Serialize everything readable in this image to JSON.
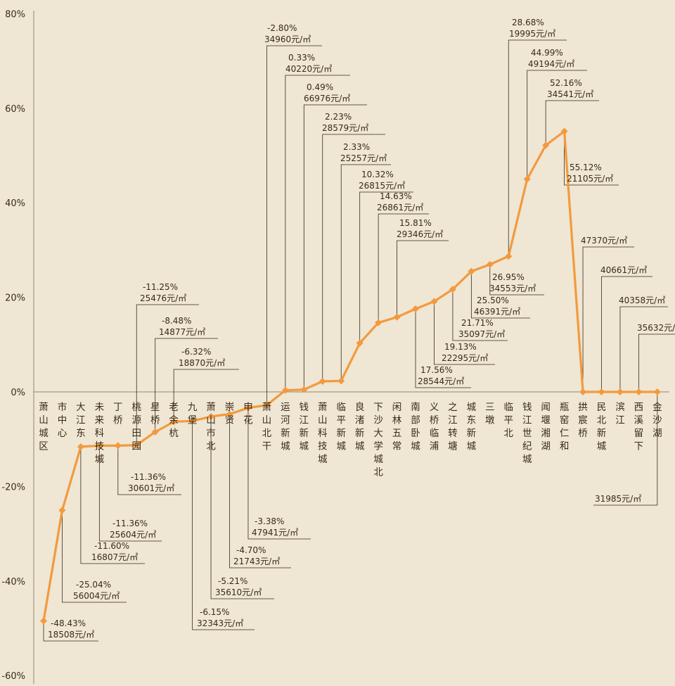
{
  "chart_data": {
    "type": "line",
    "title": "",
    "xlabel": "",
    "ylabel": "",
    "ylim": [
      -60,
      80
    ],
    "yticks": [
      "80%",
      "60%",
      "40%",
      "20%",
      "0%",
      "-20%",
      "-40%",
      "-60%"
    ],
    "grid": false,
    "colors": {
      "line": "#f39a3d",
      "marker": "#f39a3d",
      "background": "#efe6d4",
      "axis": "#8f8676",
      "leader": "#3a2a18"
    },
    "points": [
      {
        "name": "萧山城区",
        "value": -48.43,
        "pct": "-48.43%",
        "price": "18508元/㎡"
      },
      {
        "name": "市中心",
        "value": -25.04,
        "pct": "-25.04%",
        "price": "56004元/㎡"
      },
      {
        "name": "大江东",
        "value": -11.6,
        "pct": "-11.60%",
        "price": "16807元/㎡"
      },
      {
        "name": "未来科技城",
        "value": -11.36,
        "pct": "-11.36%",
        "price": "25604元/㎡"
      },
      {
        "name": "丁桥",
        "value": -11.36,
        "pct": "-11.36%",
        "price": "30601元/㎡"
      },
      {
        "name": "桃源田园",
        "value": -11.25,
        "pct": "-11.25%",
        "price": "25476元/㎡"
      },
      {
        "name": "星桥",
        "value": -8.48,
        "pct": "-8.48%",
        "price": "14877元/㎡"
      },
      {
        "name": "老余杭",
        "value": -6.32,
        "pct": "-6.32%",
        "price": "18870元/㎡"
      },
      {
        "name": "九堡",
        "value": -6.15,
        "pct": "-6.15%",
        "price": "32343元/㎡"
      },
      {
        "name": "萧山市北",
        "value": -5.21,
        "pct": "-5.21%",
        "price": "35610元/㎡"
      },
      {
        "name": "崇贤",
        "value": -4.7,
        "pct": "-4.70%",
        "price": "21743元/㎡"
      },
      {
        "name": "申花",
        "value": -3.38,
        "pct": "-3.38%",
        "price": "47941元/㎡"
      },
      {
        "name": "萧山北干",
        "value": -2.8,
        "pct": "-2.80%",
        "price": "34960元/㎡"
      },
      {
        "name": "运河新城",
        "value": 0.33,
        "pct": "0.33%",
        "price": "40220元/㎡"
      },
      {
        "name": "钱江新城",
        "value": 0.49,
        "pct": "0.49%",
        "price": "66976元/㎡"
      },
      {
        "name": "萧山科技城",
        "value": 2.23,
        "pct": "2.23%",
        "price": "28579元/㎡"
      },
      {
        "name": "临平新城",
        "value": 2.33,
        "pct": "2.33%",
        "price": "25257元/㎡"
      },
      {
        "name": "良渚新城",
        "value": 10.32,
        "pct": "10.32%",
        "price": "26815元/㎡"
      },
      {
        "name": "下沙大学城北",
        "value": 14.63,
        "pct": "14.63%",
        "price": "26861元/㎡"
      },
      {
        "name": "闲林五常",
        "value": 15.81,
        "pct": "15.81%",
        "price": "29346元/㎡"
      },
      {
        "name": "南部卧城",
        "value": 17.56,
        "pct": "17.56%",
        "price": "28544元/㎡"
      },
      {
        "name": "义桥临浦",
        "value": 19.13,
        "pct": "19.13%",
        "price": "22295元/㎡"
      },
      {
        "name": "之江转塘",
        "value": 21.71,
        "pct": "21.71%",
        "price": "35097元/㎡"
      },
      {
        "name": "城东新城",
        "value": 25.5,
        "pct": "25.50%",
        "price": "46391元/㎡"
      },
      {
        "name": "三墩",
        "value": 26.95,
        "pct": "26.95%",
        "price": "34553元/㎡"
      },
      {
        "name": "临平北",
        "value": 28.68,
        "pct": "28.68%",
        "price": "19995元/㎡"
      },
      {
        "name": "钱江世纪城",
        "value": 44.99,
        "pct": "44.99%",
        "price": "49194元/㎡"
      },
      {
        "name": "闻堰湘湖",
        "value": 52.16,
        "pct": "52.16%",
        "price": "34541元/㎡"
      },
      {
        "name": "瓶窑仁和",
        "value": 55.12,
        "pct": "55.12%",
        "price": "21105元/㎡"
      },
      {
        "name": "拱宸桥",
        "value": 0,
        "pct": "",
        "price": "47370元/㎡"
      },
      {
        "name": "民北新城",
        "value": 0,
        "pct": "",
        "price": "40661元/㎡"
      },
      {
        "name": "滨江",
        "value": 0,
        "pct": "",
        "price": "40358元/㎡"
      },
      {
        "name": "西溪留下",
        "value": 0,
        "pct": "",
        "price": "35632元/㎡"
      },
      {
        "name": "金沙湖",
        "value": 0,
        "pct": "",
        "price": "31985元/㎡"
      }
    ]
  }
}
